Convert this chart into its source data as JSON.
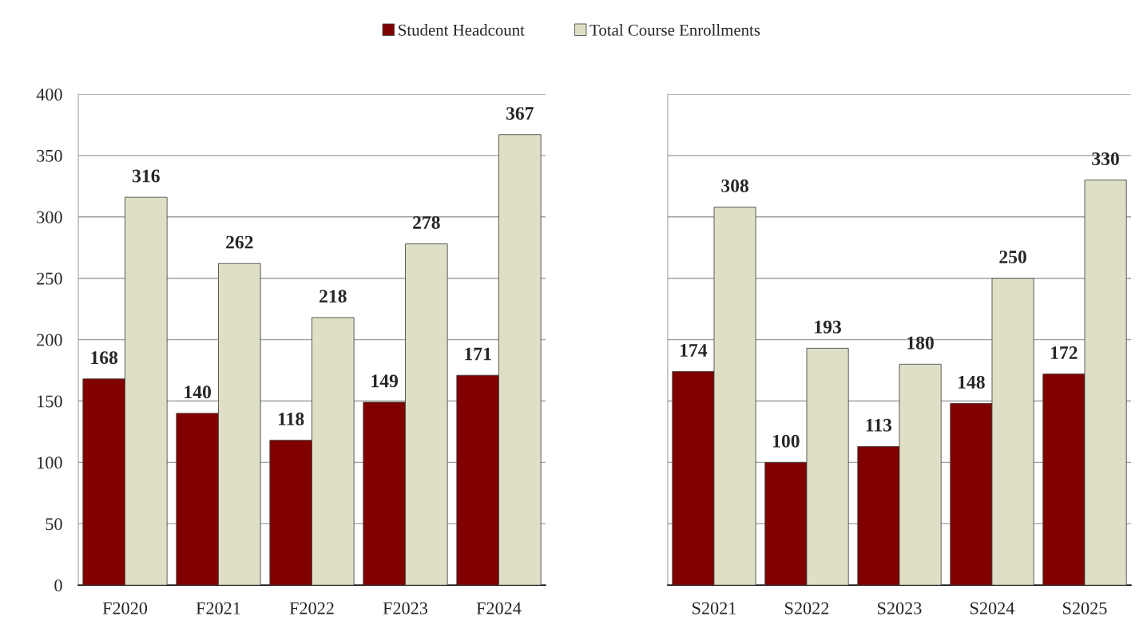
{
  "chart_data": [
    {
      "type": "bar",
      "categories": [
        "F2020",
        "F2021",
        "F2022",
        "F2023",
        "F2024"
      ],
      "series": [
        {
          "name": "Student Headcount",
          "color": "#800000",
          "values": [
            168,
            140,
            118,
            149,
            171
          ]
        },
        {
          "name": "Total Course Enrollments",
          "color": "#dfdfc6",
          "values": [
            316,
            262,
            218,
            278,
            367
          ]
        }
      ],
      "ylim": [
        0,
        400
      ],
      "yticks": [
        0,
        50,
        100,
        150,
        200,
        250,
        300,
        350,
        400
      ],
      "grid": "y",
      "legend": "top",
      "data_labels": true
    },
    {
      "type": "bar",
      "categories": [
        "S2021",
        "S2022",
        "S2023",
        "S2024",
        "S2025"
      ],
      "series": [
        {
          "color": "#800000",
          "values": [
            174,
            100,
            113,
            148,
            172
          ]
        },
        {
          "color": "#dfdfc6",
          "values": [
            308,
            193,
            180,
            250,
            330
          ]
        }
      ],
      "ylim": [
        0,
        400
      ],
      "yticks": [
        0,
        50,
        100,
        150,
        200,
        250,
        300,
        350,
        400
      ],
      "grid": "y",
      "tick_labels": "x",
      "data_labels": true
    }
  ]
}
